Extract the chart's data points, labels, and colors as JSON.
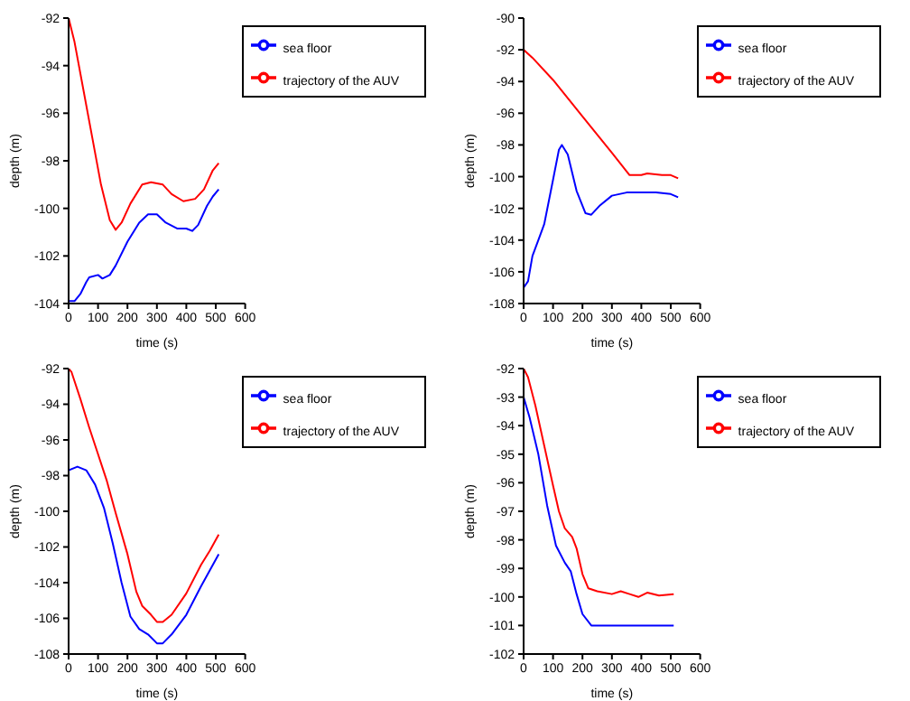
{
  "chart_data": [
    {
      "type": "line",
      "xlabel": "time (s)",
      "ylabel": "depth (m)",
      "xlim": [
        0,
        600
      ],
      "xticks": [
        0,
        100,
        200,
        300,
        400,
        500,
        600
      ],
      "ylim": [
        -104,
        -92
      ],
      "yticks": [
        -104,
        -102,
        -100,
        -98,
        -96,
        -94,
        -92
      ],
      "legend": "top right",
      "grid": false,
      "series": [
        {
          "name": "trajectory of the AUV",
          "color": "#ff0000",
          "x": [
            0,
            20,
            50,
            80,
            110,
            140,
            160,
            180,
            210,
            250,
            280,
            320,
            350,
            390,
            430,
            460,
            490,
            510
          ],
          "values": [
            -92,
            -93,
            -95,
            -97,
            -99,
            -100.5,
            -100.9,
            -100.6,
            -99.8,
            -99,
            -98.9,
            -99,
            -99.4,
            -99.7,
            -99.6,
            -99.2,
            -98.4,
            -98.1
          ]
        },
        {
          "name": "sea floor",
          "color": "#0000ff",
          "x": [
            0,
            20,
            40,
            60,
            70,
            100,
            115,
            140,
            160,
            200,
            240,
            270,
            300,
            330,
            370,
            400,
            420,
            440,
            470,
            490,
            510
          ],
          "values": [
            -103.9,
            -103.9,
            -103.6,
            -103.1,
            -102.9,
            -102.8,
            -102.95,
            -102.8,
            -102.4,
            -101.4,
            -100.6,
            -100.25,
            -100.25,
            -100.6,
            -100.85,
            -100.85,
            -100.95,
            -100.7,
            -99.9,
            -99.5,
            -99.2
          ]
        }
      ]
    },
    {
      "type": "line",
      "xlabel": "time (s)",
      "ylabel": "depth (m)",
      "xlim": [
        0,
        600
      ],
      "xticks": [
        0,
        100,
        200,
        300,
        400,
        500,
        600
      ],
      "ylim": [
        -108,
        -90
      ],
      "yticks": [
        -108,
        -106,
        -104,
        -102,
        -100,
        -98,
        -96,
        -94,
        -92,
        -90
      ],
      "legend": "top right",
      "grid": false,
      "series": [
        {
          "name": "trajectory of the AUV",
          "color": "#ff0000",
          "x": [
            0,
            30,
            100,
            200,
            300,
            360,
            400,
            420,
            470,
            500,
            525
          ],
          "values": [
            -92,
            -92.5,
            -93.9,
            -96.2,
            -98.5,
            -99.9,
            -99.9,
            -99.8,
            -99.9,
            -99.9,
            -100.1
          ]
        },
        {
          "name": "sea floor",
          "color": "#0000ff",
          "x": [
            0,
            15,
            30,
            50,
            70,
            100,
            120,
            130,
            150,
            180,
            210,
            230,
            260,
            300,
            350,
            450,
            500,
            525
          ],
          "values": [
            -107,
            -106.6,
            -105,
            -104,
            -103,
            -100.2,
            -98.3,
            -98,
            -98.6,
            -100.9,
            -102.3,
            -102.4,
            -101.8,
            -101.2,
            -101,
            -101,
            -101.1,
            -101.3
          ]
        }
      ]
    },
    {
      "type": "line",
      "xlabel": "time (s)",
      "ylabel": "depth (m)",
      "xlim": [
        0,
        600
      ],
      "xticks": [
        0,
        100,
        200,
        300,
        400,
        500,
        600
      ],
      "ylim": [
        -108,
        -92
      ],
      "yticks": [
        -108,
        -106,
        -104,
        -102,
        -100,
        -98,
        -96,
        -94,
        -92
      ],
      "legend": "top right",
      "grid": false,
      "series": [
        {
          "name": "trajectory of the AUV",
          "color": "#ff0000",
          "x": [
            0,
            10,
            40,
            70,
            100,
            130,
            160,
            200,
            230,
            250,
            280,
            300,
            320,
            350,
            400,
            450,
            480,
            510
          ],
          "values": [
            -92,
            -92.2,
            -93.7,
            -95.3,
            -96.8,
            -98.3,
            -100.1,
            -102.4,
            -104.5,
            -105.3,
            -105.8,
            -106.2,
            -106.2,
            -105.8,
            -104.6,
            -103,
            -102.2,
            -101.3
          ]
        },
        {
          "name": "sea floor",
          "color": "#0000ff",
          "x": [
            0,
            30,
            60,
            90,
            120,
            150,
            180,
            210,
            240,
            270,
            300,
            320,
            350,
            400,
            450,
            480,
            510
          ],
          "values": [
            -97.7,
            -97.5,
            -97.7,
            -98.5,
            -99.8,
            -101.8,
            -104,
            -105.9,
            -106.6,
            -106.9,
            -107.4,
            -107.4,
            -106.9,
            -105.8,
            -104.2,
            -103.3,
            -102.4
          ]
        }
      ]
    },
    {
      "type": "line",
      "xlabel": "time (s)",
      "ylabel": "depth (m)",
      "xlim": [
        0,
        600
      ],
      "xticks": [
        0,
        100,
        200,
        300,
        400,
        500,
        600
      ],
      "ylim": [
        -102,
        -92
      ],
      "yticks": [
        -102,
        -101,
        -100,
        -99,
        -98,
        -97,
        -96,
        -95,
        -94,
        -93,
        -92
      ],
      "legend": "top right",
      "grid": false,
      "series": [
        {
          "name": "trajectory of the AUV",
          "color": "#ff0000",
          "x": [
            0,
            15,
            40,
            70,
            100,
            120,
            140,
            165,
            180,
            200,
            220,
            250,
            300,
            330,
            360,
            390,
            420,
            460,
            510
          ],
          "values": [
            -92,
            -92.3,
            -93.3,
            -94.7,
            -96.1,
            -97,
            -97.6,
            -97.9,
            -98.3,
            -99.2,
            -99.7,
            -99.8,
            -99.9,
            -99.8,
            -99.9,
            -100,
            -99.85,
            -99.95,
            -99.9
          ]
        },
        {
          "name": "sea floor",
          "color": "#0000ff",
          "x": [
            0,
            20,
            50,
            80,
            110,
            140,
            160,
            180,
            200,
            230,
            260,
            510
          ],
          "values": [
            -93,
            -93.7,
            -95,
            -96.8,
            -98.2,
            -98.8,
            -99.1,
            -99.9,
            -100.6,
            -101,
            -101,
            -101
          ]
        }
      ]
    }
  ]
}
